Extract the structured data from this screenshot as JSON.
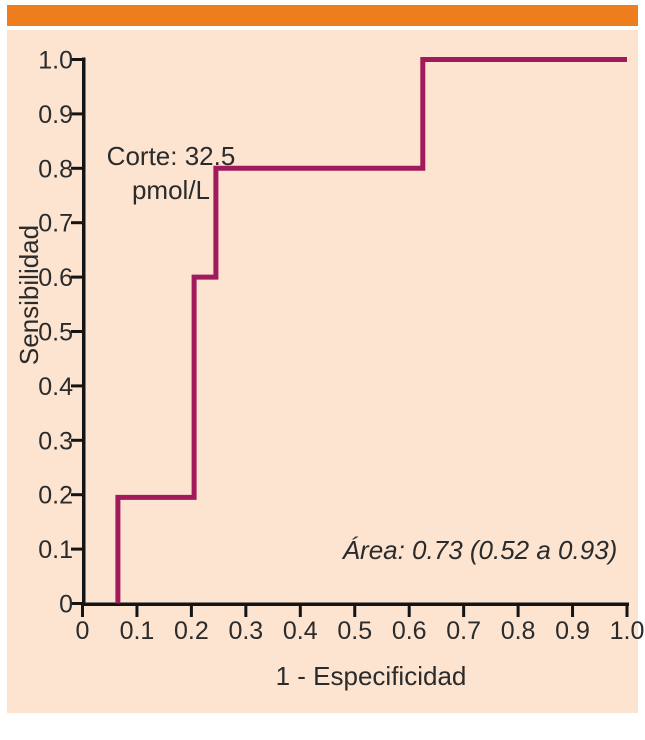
{
  "figure": {
    "accent_color": "#EE7D1E",
    "panel_color": "#FCE4D1",
    "axis_color": "#141414",
    "text_color": "#2B2B2B"
  },
  "chart_data": {
    "type": "line",
    "subtype": "ROC step curve",
    "title": "",
    "xlabel": "1 - Especificidad",
    "ylabel": "Sensibilidad",
    "xlim": [
      0,
      1.0
    ],
    "ylim": [
      0,
      1.0
    ],
    "grid": false,
    "x_tick_labels": [
      "0",
      "0.1",
      "0.2",
      "0.3",
      "0.4",
      "0.5",
      "0.6",
      "0.7",
      "0.8",
      "0.9",
      "1.0"
    ],
    "y_tick_labels": [
      "0",
      "0.1",
      "0.2",
      "0.3",
      "0.4",
      "0.5",
      "0.6",
      "0.7",
      "0.8",
      "0.9",
      "1.0"
    ],
    "series": [
      {
        "name": "ROC curve",
        "color": "#A11A5B",
        "points": [
          [
            0.065,
            0
          ],
          [
            0.065,
            0.195
          ],
          [
            0.205,
            0.195
          ],
          [
            0.205,
            0.6
          ],
          [
            0.245,
            0.6
          ],
          [
            0.245,
            0.8
          ],
          [
            0.625,
            0.8
          ],
          [
            0.625,
            1.0
          ],
          [
            1.0,
            1.0
          ]
        ]
      }
    ],
    "annotations": {
      "cutoff": {
        "line1": "Corte: 32.5",
        "line2": "pmol/L"
      },
      "area": {
        "text": "Área: 0.73 (0.52 a 0.93)"
      }
    }
  }
}
